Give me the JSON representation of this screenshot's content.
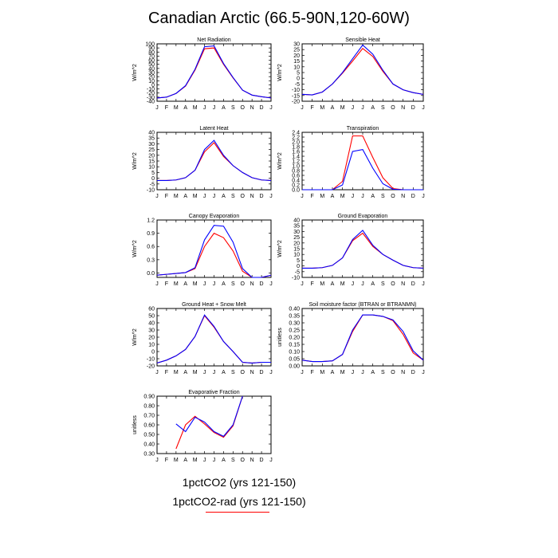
{
  "title": "Canadian Arctic (66.5-90N,120-60W)",
  "legend": [
    {
      "label": "1pctCO2 (yrs 121-150)",
      "color": "#0000ff"
    },
    {
      "label": "1pctCO2-rad (yrs 121-150)",
      "color": "#ff0000"
    }
  ],
  "colors": {
    "series_1": "#0000ff",
    "series_2": "#ff0000"
  },
  "chart_data": [
    {
      "type": "line",
      "title": "Net Radiation",
      "ylabel": "W/m^2",
      "categories": [
        "J",
        "F",
        "M",
        "A",
        "M",
        "J",
        "J",
        "A",
        "S",
        "O",
        "N",
        "D",
        "J"
      ],
      "ylim": [
        -40,
        100
      ],
      "yticks": [
        -40,
        -30,
        -20,
        -10,
        0,
        10,
        20,
        30,
        40,
        50,
        60,
        70,
        80,
        90,
        100
      ],
      "ytick_labels": [
        "-40",
        "-30",
        "-20",
        "-10",
        "0",
        "10",
        "20",
        "30",
        "40",
        "50",
        "60",
        "70",
        "80",
        "90",
        "100"
      ],
      "series": [
        {
          "name": "1pctCO2 (yrs 121-150)",
          "values": [
            -32,
            -30,
            -21,
            -2,
            38,
            93,
            95,
            52,
            18,
            -13,
            -25,
            -29,
            -32
          ]
        },
        {
          "name": "1pctCO2-rad (yrs 121-150)",
          "values": [
            -32,
            -30,
            -21,
            -3,
            36,
            88,
            90,
            50,
            17,
            -13,
            -25,
            -29,
            -32
          ]
        }
      ]
    },
    {
      "type": "line",
      "title": "Sensible Heat",
      "ylabel": "W/m^2",
      "categories": [
        "J",
        "F",
        "M",
        "A",
        "M",
        "J",
        "J",
        "A",
        "S",
        "O",
        "N",
        "D",
        "J"
      ],
      "ylim": [
        -20,
        30
      ],
      "yticks": [
        -20,
        -15,
        -10,
        -5,
        0,
        5,
        10,
        15,
        20,
        25,
        30
      ],
      "ytick_labels": [
        "-20",
        "-15",
        "-10",
        "-5",
        "0",
        "5",
        "10",
        "15",
        "20",
        "25",
        "30"
      ],
      "series": [
        {
          "name": "1pctCO2 (yrs 121-150)",
          "values": [
            -14,
            -14.5,
            -12,
            -5,
            5,
            17,
            29,
            21,
            7,
            -5,
            -10,
            -12.5,
            -14
          ]
        },
        {
          "name": "1pctCO2-rad (yrs 121-150)",
          "values": [
            -14,
            -14.5,
            -12,
            -5,
            4.5,
            15,
            26,
            19,
            6,
            -5,
            -10,
            -12.5,
            -14
          ]
        }
      ]
    },
    {
      "type": "line",
      "title": "Latent Heat",
      "ylabel": "W/m^2",
      "categories": [
        "J",
        "F",
        "M",
        "A",
        "M",
        "J",
        "J",
        "A",
        "S",
        "O",
        "N",
        "D",
        "J"
      ],
      "ylim": [
        -10,
        40
      ],
      "yticks": [
        -10,
        -5,
        0,
        5,
        10,
        15,
        20,
        25,
        30,
        35,
        40
      ],
      "ytick_labels": [
        "-10",
        "-5",
        "0",
        "5",
        "10",
        "15",
        "20",
        "25",
        "30",
        "35",
        "40"
      ],
      "series": [
        {
          "name": "1pctCO2 (yrs 121-150)",
          "values": [
            -2,
            -2,
            -1.5,
            0.5,
            7,
            25,
            33,
            20,
            11,
            5,
            0.5,
            -1.5,
            -2
          ]
        },
        {
          "name": "1pctCO2-rad (yrs 121-150)",
          "values": [
            -2,
            -2,
            -1.5,
            0.5,
            7,
            23,
            31,
            19,
            11,
            5,
            0.5,
            -1.5,
            -2
          ]
        }
      ]
    },
    {
      "type": "line",
      "title": "Transpiration",
      "ylabel": "W/m^2",
      "categories": [
        "J",
        "F",
        "M",
        "A",
        "M",
        "J",
        "J",
        "A",
        "S",
        "O",
        "N",
        "D",
        "J"
      ],
      "ylim": [
        0,
        2.4
      ],
      "yticks": [
        0,
        0.2,
        0.4,
        0.6,
        0.8,
        1.0,
        1.2,
        1.4,
        1.6,
        1.8,
        2.0,
        2.2,
        2.4
      ],
      "ytick_labels": [
        "0.0",
        "0.2",
        "0.4",
        "0.6",
        "0.8",
        "1.0",
        "1.2",
        "1.4",
        "1.6",
        "1.8",
        "2.0",
        "2.2",
        "2.4"
      ],
      "series": [
        {
          "name": "1pctCO2 (yrs 121-150)",
          "values": [
            0,
            0,
            0,
            0,
            0.2,
            1.6,
            1.68,
            0.9,
            0.25,
            0.02,
            0,
            0,
            0
          ]
        },
        {
          "name": "1pctCO2-rad (yrs 121-150)",
          "values": [
            0,
            0,
            0,
            0,
            0.35,
            2.25,
            2.25,
            1.35,
            0.5,
            0.05,
            0,
            0,
            0
          ]
        }
      ]
    },
    {
      "type": "line",
      "title": "Canopy Evaporation",
      "ylabel": "W/m^2",
      "categories": [
        "J",
        "F",
        "M",
        "A",
        "M",
        "J",
        "J",
        "A",
        "S",
        "O",
        "N",
        "D",
        "J"
      ],
      "ylim": [
        -0.1,
        1.2
      ],
      "yticks": [
        0,
        0.3,
        0.6,
        0.9,
        1.2
      ],
      "ytick_labels": [
        "0.0",
        "0.3",
        "0.6",
        "0.9",
        "1.2"
      ],
      "series": [
        {
          "name": "1pctCO2 (yrs 121-150)",
          "values": [
            -0.05,
            -0.03,
            -0.01,
            0.01,
            0.12,
            0.75,
            1.08,
            1.06,
            0.7,
            0.1,
            -0.17,
            -0.11,
            -0.05
          ]
        },
        {
          "name": "1pctCO2-rad (yrs 121-150)",
          "values": [
            -0.05,
            -0.03,
            -0.01,
            0.01,
            0.1,
            0.6,
            0.9,
            0.8,
            0.5,
            0.04,
            -0.16,
            -0.12,
            -0.05
          ]
        }
      ]
    },
    {
      "type": "line",
      "title": "Ground Evaporation",
      "ylabel": "W/m^2",
      "categories": [
        "J",
        "F",
        "M",
        "A",
        "M",
        "J",
        "J",
        "A",
        "S",
        "O",
        "N",
        "D",
        "J"
      ],
      "ylim": [
        -10,
        40
      ],
      "yticks": [
        -10,
        -5,
        0,
        5,
        10,
        15,
        20,
        25,
        30,
        35,
        40
      ],
      "ytick_labels": [
        "-10",
        "-5",
        "0",
        "5",
        "10",
        "15",
        "20",
        "25",
        "30",
        "35",
        "40"
      ],
      "series": [
        {
          "name": "1pctCO2 (yrs 121-150)",
          "values": [
            -2,
            -2,
            -1.5,
            0.5,
            7,
            23,
            31,
            18,
            10,
            5,
            0.5,
            -1.5,
            -2
          ]
        },
        {
          "name": "1pctCO2-rad (yrs 121-150)",
          "values": [
            -2,
            -2,
            -1.5,
            0.5,
            7,
            22,
            28.5,
            17,
            10,
            5,
            0.5,
            -1.5,
            -2
          ]
        }
      ]
    },
    {
      "type": "line",
      "title": "Ground Heat + Snow Melt",
      "ylabel": "W/m^2",
      "categories": [
        "J",
        "F",
        "M",
        "A",
        "M",
        "J",
        "J",
        "A",
        "S",
        "O",
        "N",
        "D",
        "J"
      ],
      "ylim": [
        -20,
        60
      ],
      "yticks": [
        -20,
        -10,
        0,
        10,
        20,
        30,
        40,
        50,
        60
      ],
      "ytick_labels": [
        "-20",
        "-10",
        "0",
        "10",
        "20",
        "30",
        "40",
        "50",
        "60"
      ],
      "series": [
        {
          "name": "1pctCO2 (yrs 121-150)",
          "values": [
            -16,
            -12,
            -6,
            3,
            21,
            51,
            35,
            14,
            0,
            -15,
            -16,
            -15,
            -15
          ]
        },
        {
          "name": "1pctCO2-rad (yrs 121-150)",
          "values": [
            -16,
            -12,
            -6,
            3,
            21,
            50,
            34,
            14,
            0,
            -15,
            -16,
            -15,
            -15
          ]
        }
      ]
    },
    {
      "type": "line",
      "title": "Soil moisture factor (BTRAN or BTRANMN)",
      "ylabel": "unitless",
      "categories": [
        "J",
        "F",
        "M",
        "A",
        "M",
        "J",
        "J",
        "A",
        "S",
        "O",
        "N",
        "D",
        "J"
      ],
      "ylim": [
        0,
        0.4
      ],
      "yticks": [
        0,
        0.05,
        0.1,
        0.15,
        0.2,
        0.25,
        0.3,
        0.35,
        0.4
      ],
      "ytick_labels": [
        "0.00",
        "0.05",
        "0.10",
        "0.15",
        "0.20",
        "0.25",
        "0.30",
        "0.35",
        "0.40"
      ],
      "series": [
        {
          "name": "1pctCO2 (yrs 121-150)",
          "values": [
            0.04,
            0.03,
            0.03,
            0.035,
            0.08,
            0.25,
            0.355,
            0.355,
            0.345,
            0.32,
            0.24,
            0.105,
            0.04
          ]
        },
        {
          "name": "1pctCO2-rad (yrs 121-150)",
          "values": [
            0.04,
            0.03,
            0.03,
            0.035,
            0.08,
            0.24,
            0.355,
            0.355,
            0.345,
            0.315,
            0.22,
            0.09,
            0.04
          ]
        }
      ]
    },
    {
      "type": "line",
      "title": "Evaporative Fraction",
      "ylabel": "unitless",
      "categories": [
        "J",
        "F",
        "M",
        "A",
        "M",
        "J",
        "J",
        "A",
        "S",
        "O",
        "N",
        "D",
        "J"
      ],
      "ylim": [
        0.3,
        0.9
      ],
      "yticks": [
        0.3,
        0.4,
        0.5,
        0.6,
        0.7,
        0.8,
        0.9
      ],
      "ytick_labels": [
        "0.30",
        "0.40",
        "0.50",
        "0.60",
        "0.70",
        "0.80",
        "0.90"
      ],
      "series": [
        {
          "name": "1pctCO2 (yrs 121-150)",
          "values": [
            null,
            null,
            0.61,
            0.53,
            0.68,
            0.63,
            0.53,
            0.48,
            0.6,
            0.92,
            null,
            null,
            null
          ]
        },
        {
          "name": "1pctCO2-rad (yrs 121-150)",
          "values": [
            null,
            null,
            0.35,
            0.6,
            0.69,
            0.61,
            0.52,
            0.47,
            0.59,
            0.92,
            null,
            null,
            null
          ]
        }
      ]
    }
  ]
}
